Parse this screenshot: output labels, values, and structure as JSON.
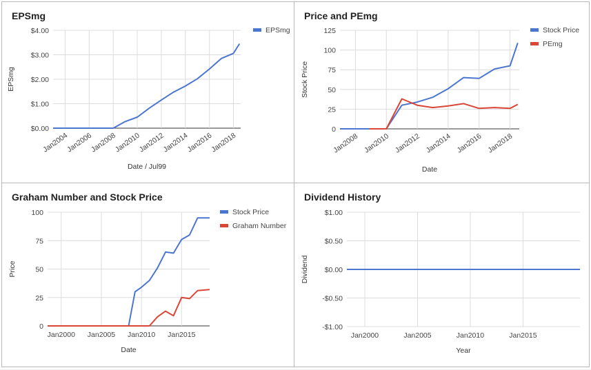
{
  "chart_data": [
    {
      "type": "line",
      "title": "EPSmg",
      "xlabel": "Date / Jul99",
      "ylabel": "EPSmg",
      "ylim": [
        0,
        4
      ],
      "yticks": [
        "$0.00",
        "$1.00",
        "$2.00",
        "$3.00",
        "$4.00"
      ],
      "xlim": [
        2003,
        2018.6
      ],
      "xticks": [
        {
          "v": 2004,
          "label": "Jan2004"
        },
        {
          "v": 2006,
          "label": "Jan2006"
        },
        {
          "v": 2008,
          "label": "Jan2008"
        },
        {
          "v": 2010,
          "label": "Jan2010"
        },
        {
          "v": 2012,
          "label": "Jan2012"
        },
        {
          "v": 2014,
          "label": "Jan2014"
        },
        {
          "v": 2016,
          "label": "Jan2016"
        },
        {
          "v": 2018,
          "label": "Jan2018"
        }
      ],
      "xtick_rotate": true,
      "grid": true,
      "legend_position": "top-right",
      "series": [
        {
          "name": "EPSmg",
          "color": "#4a76d0",
          "x": [
            2003,
            2004,
            2005,
            2006,
            2007,
            2008,
            2009,
            2010,
            2011,
            2012,
            2013,
            2014,
            2015,
            2016,
            2017,
            2018,
            2018.5
          ],
          "y": [
            0,
            0,
            0,
            0,
            0,
            0,
            0.27,
            0.45,
            0.82,
            1.15,
            1.47,
            1.72,
            2.02,
            2.42,
            2.85,
            3.06,
            3.45
          ]
        }
      ]
    },
    {
      "type": "line",
      "title": "Price and PEmg",
      "xlabel": "Date",
      "ylabel": "Stock Price",
      "ylim": [
        0,
        125
      ],
      "yticks": [
        "0",
        "25",
        "50",
        "75",
        "100",
        "125"
      ],
      "xlim": [
        2007,
        2018.6
      ],
      "xticks": [
        {
          "v": 2008,
          "label": "Jan2008"
        },
        {
          "v": 2010,
          "label": "Jan2010"
        },
        {
          "v": 2012,
          "label": "Jan2012"
        },
        {
          "v": 2014,
          "label": "Jan2014"
        },
        {
          "v": 2016,
          "label": "Jan2016"
        },
        {
          "v": 2018,
          "label": "Jan2018"
        }
      ],
      "xtick_rotate": true,
      "grid": true,
      "legend_position": "top-right",
      "series": [
        {
          "name": "Stock Price",
          "color": "#4a76d0",
          "x": [
            2007,
            2008,
            2009,
            2010,
            2011,
            2012,
            2013,
            2014,
            2015,
            2016,
            2017,
            2018,
            2018.5
          ],
          "y": [
            0,
            0,
            0,
            0,
            30,
            34,
            40,
            51,
            65,
            64,
            76,
            80,
            109
          ]
        },
        {
          "name": "PEmg",
          "color": "#db4535",
          "x": [
            2008.9,
            2010,
            2011,
            2012,
            2013,
            2014,
            2015,
            2016,
            2017,
            2018,
            2018.5
          ],
          "y": [
            0,
            0,
            38,
            30,
            27,
            29,
            32,
            26,
            27,
            26,
            31
          ]
        }
      ]
    },
    {
      "type": "line",
      "title": "Graham Number and Stock Price",
      "xlabel": "Date",
      "ylabel": "Price",
      "ylim": [
        0,
        100
      ],
      "yticks": [
        "0",
        "25",
        "50",
        "75",
        "100"
      ],
      "xlim": [
        1998.3,
        2018.5
      ],
      "xticks": [
        {
          "v": 2000,
          "label": "Jan2000"
        },
        {
          "v": 2005,
          "label": "Jan2005"
        },
        {
          "v": 2010,
          "label": "Jan2010"
        },
        {
          "v": 2015,
          "label": "Jan2015"
        }
      ],
      "xtick_rotate": false,
      "grid": true,
      "legend_position": "top-right",
      "series": [
        {
          "name": "Stock Price",
          "color": "#4a76d0",
          "x": [
            1998.3,
            2008.4,
            2009.2,
            2010,
            2011,
            2012,
            2013,
            2014,
            2015,
            2016,
            2017,
            2018.5
          ],
          "y": [
            0,
            0,
            30,
            34,
            40,
            51,
            65,
            64,
            76,
            80,
            95,
            95
          ]
        },
        {
          "name": "Graham Number",
          "color": "#db4535",
          "x": [
            1998.3,
            2010,
            2011,
            2012,
            2013,
            2014,
            2015,
            2016,
            2017,
            2018.5
          ],
          "y": [
            0,
            0,
            0,
            8,
            13,
            9,
            25,
            24,
            31,
            32
          ]
        }
      ]
    },
    {
      "type": "line",
      "title": "Dividend History",
      "xlabel": "Year",
      "ylabel": "Dividend",
      "ylim": [
        -1,
        1
      ],
      "yticks": [
        "-$1.00",
        "-$0.50",
        "$0.00",
        "$0.50",
        "$1.00"
      ],
      "xlim": [
        1998.3,
        2020.4
      ],
      "xticks": [
        {
          "v": 2000,
          "label": "Jan2000"
        },
        {
          "v": 2005,
          "label": "Jan2005"
        },
        {
          "v": 2010,
          "label": "Jan2010"
        },
        {
          "v": 2015,
          "label": "Jan2015"
        }
      ],
      "xtick_rotate": false,
      "grid": true,
      "legend_position": "none",
      "series": [
        {
          "color": "#4a76d0",
          "x": [
            1998.3,
            2020.4
          ],
          "y": [
            0,
            0
          ]
        }
      ]
    }
  ]
}
